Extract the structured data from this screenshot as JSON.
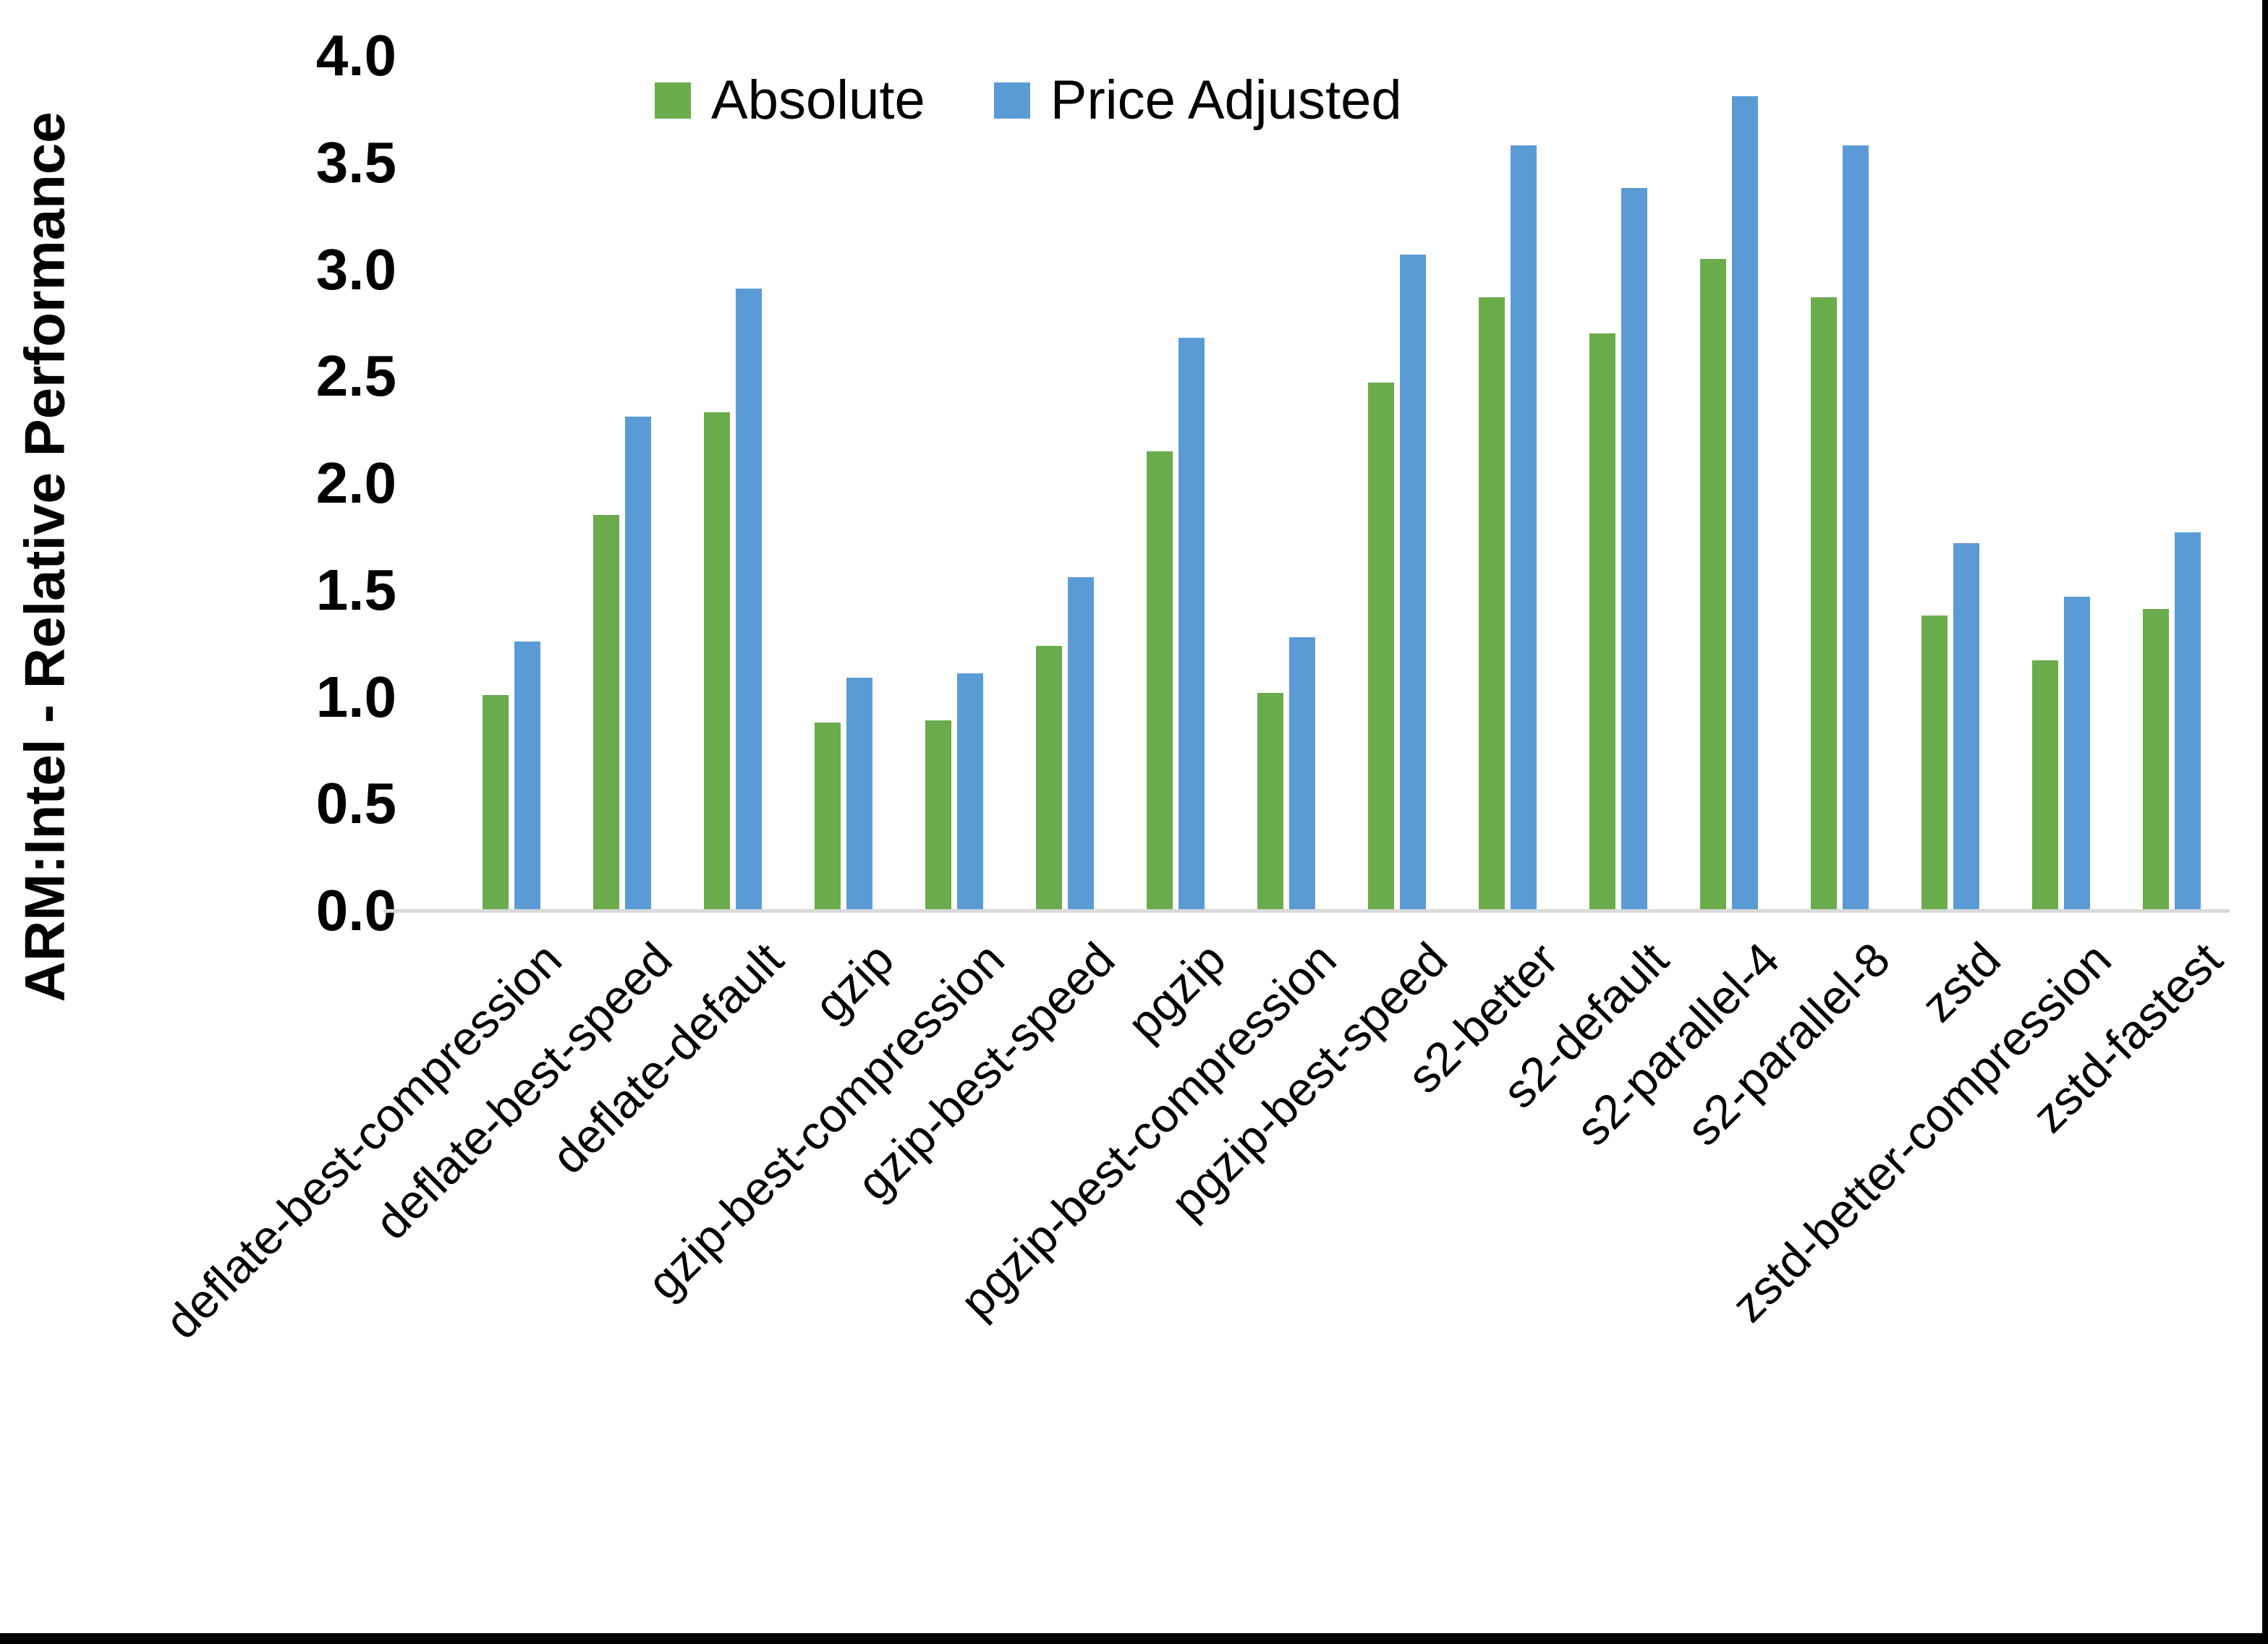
{
  "chart_data": {
    "type": "bar",
    "title": "",
    "ylabel": "ARM:Intel - Relative Performance",
    "xlabel": "",
    "ylim": [
      0,
      4.0
    ],
    "ytick_step": 0.5,
    "ytick_format_decimals": 1,
    "grid": false,
    "legend_position": "top-center",
    "background_color": "#ffffff",
    "axis_line_color": "#d9d9d9",
    "text_color": "#000000",
    "categories": [
      "deflate-best-compression",
      "deflate-best-speed",
      "deflate-default",
      "gzip",
      "gzip-best-compression",
      "gzip-best-speed",
      "pgzip",
      "pgzip-best-compression",
      "pgzip-best-speed",
      "s2-better",
      "s2-default",
      "s2-parallel-4",
      "s2-parallel-8",
      "zstd",
      "zstd-better-compression",
      "zstd-fastest"
    ],
    "series": [
      {
        "name": "Absolute",
        "color": "#6aab4c",
        "values": [
          1.01,
          1.85,
          2.33,
          0.88,
          0.89,
          1.24,
          2.15,
          1.02,
          2.47,
          2.87,
          2.7,
          3.05,
          2.87,
          1.38,
          1.17,
          1.41
        ]
      },
      {
        "name": "Price Adjusted",
        "color": "#5b9bd5",
        "values": [
          1.26,
          2.31,
          2.91,
          1.09,
          1.11,
          1.56,
          2.68,
          1.28,
          3.07,
          3.58,
          3.38,
          3.81,
          3.58,
          1.72,
          1.47,
          1.77
        ]
      }
    ]
  },
  "frame": {
    "bottom_border_color": "#000000",
    "right_border_color": "#000000"
  }
}
